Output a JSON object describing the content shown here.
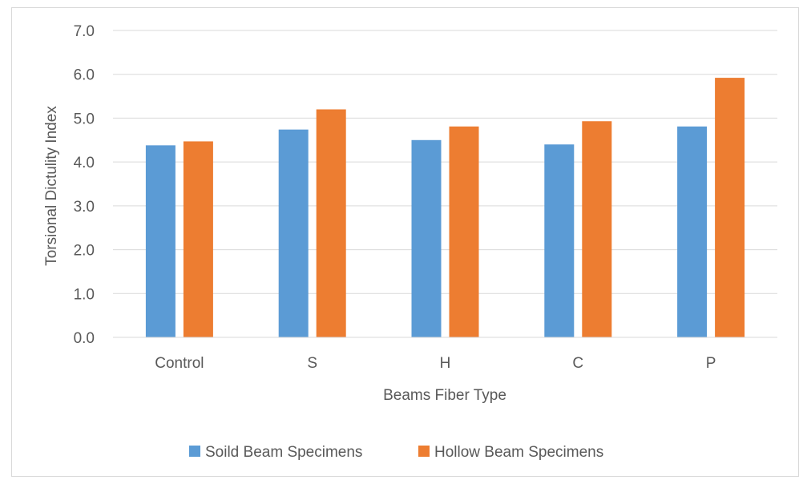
{
  "chart_data": {
    "type": "bar",
    "title": "",
    "xlabel": "Beams Fiber Type",
    "ylabel": "Torsional Dictulity Index",
    "categories": [
      "Control",
      "S",
      "H",
      "C",
      "P"
    ],
    "series": [
      {
        "name": "Soild Beam Specimens",
        "color": "#5b9bd5",
        "values": [
          4.38,
          4.74,
          4.5,
          4.4,
          4.81
        ]
      },
      {
        "name": "Hollow Beam Specimens",
        "color": "#ed7d31",
        "values": [
          4.47,
          5.2,
          4.81,
          4.93,
          5.92
        ]
      }
    ],
    "ylim": [
      0,
      7
    ],
    "yticks": [
      "0.0",
      "1.0",
      "2.0",
      "3.0",
      "4.0",
      "5.0",
      "6.0",
      "7.0"
    ],
    "grid": true,
    "legend_position": "bottom"
  }
}
